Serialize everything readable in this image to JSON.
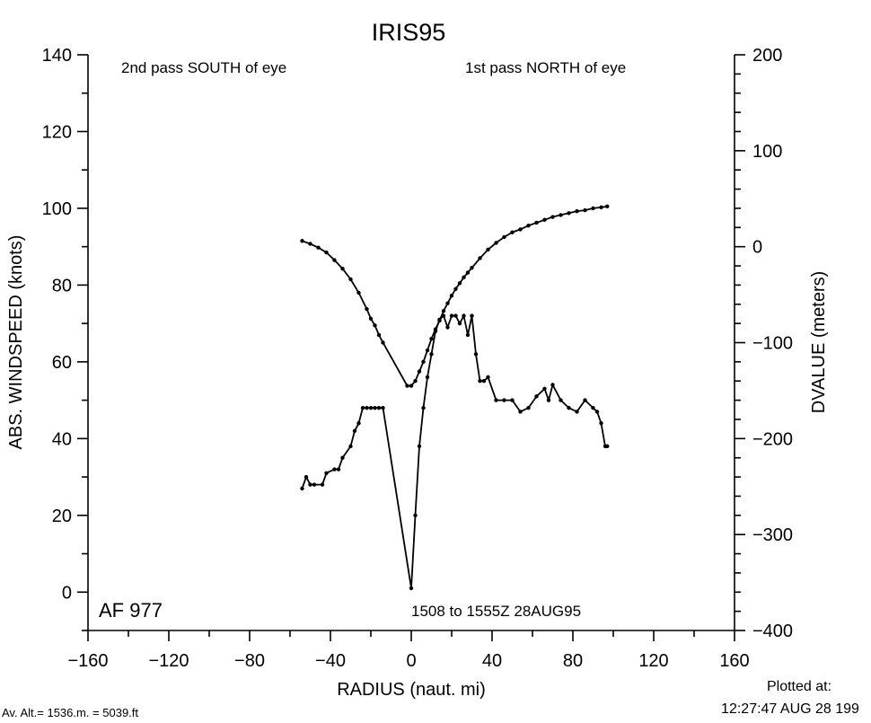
{
  "chart_data": {
    "type": "line",
    "title": "IRIS95",
    "xlabel": "RADIUS (naut. mi)",
    "ylabel": "ABS. WINDSPEED (knots)",
    "ylabel_right": "DVALUE (meters)",
    "xlim": [
      -160,
      160
    ],
    "ylim": [
      -10,
      140
    ],
    "ylim_right": [
      -400,
      200
    ],
    "x_ticks": [
      -160,
      -120,
      -80,
      -40,
      0,
      40,
      80,
      120,
      160
    ],
    "y_ticks": [
      0,
      20,
      40,
      60,
      80,
      100,
      120,
      140
    ],
    "y_ticks_right": [
      200,
      100,
      0,
      -100,
      -200,
      -300,
      -400
    ],
    "x_tick_labels": [
      "−160",
      "−120",
      "−80",
      "−40",
      "0",
      "40",
      "80",
      "120",
      "160"
    ],
    "y_tick_labels": [
      "0",
      "20",
      "40",
      "60",
      "80",
      "100",
      "120",
      "140"
    ],
    "y_tick_labels_right": [
      "200",
      "100",
      "0",
      "−100",
      "−200",
      "−300",
      "−400"
    ],
    "grid": false,
    "annotations": {
      "top_left": "2nd pass SOUTH of eye",
      "top_right": "1st pass NORTH of eye",
      "bottom_left": "AF 977",
      "bottom_center": "1508 to 1555Z 28AUG95"
    },
    "series": [
      {
        "axis": "right",
        "x": [
          -54,
          -50,
          -46,
          -42,
          -38,
          -34,
          -30,
          -26,
          -22,
          -20,
          -18,
          -16,
          -14,
          -2,
          0,
          2,
          4,
          6,
          8,
          10,
          12,
          14,
          16,
          18,
          20,
          22,
          24,
          26,
          28,
          30,
          34,
          38,
          42,
          46,
          50,
          54,
          58,
          62,
          66,
          70,
          74,
          78,
          82,
          86,
          90,
          94,
          97
        ],
        "y": [
          6,
          3,
          -1,
          -6,
          -14,
          -23,
          -34,
          -48,
          -65,
          -75,
          -82,
          -92,
          -100,
          -145,
          -145,
          -140,
          -130,
          -120,
          -108,
          -96,
          -86,
          -77,
          -67,
          -59,
          -51,
          -44,
          -38,
          -32,
          -27,
          -22,
          -12,
          -3,
          4,
          10,
          15,
          18,
          22,
          25,
          28,
          31,
          33,
          35,
          37,
          38,
          40,
          41,
          42
        ]
      },
      {
        "axis": "left",
        "x": [
          -54,
          -52,
          -50,
          -48,
          -44,
          -42,
          -38,
          -36,
          -34,
          -30,
          -28,
          -26,
          -24,
          -22,
          -20,
          -18,
          -16,
          -14,
          0,
          2,
          4,
          6,
          8,
          10,
          12,
          14,
          16,
          18,
          20,
          22,
          24,
          26,
          28,
          30,
          32,
          34,
          36,
          38,
          42,
          46,
          50,
          54,
          58,
          62,
          66,
          68,
          70,
          74,
          78,
          82,
          86,
          90,
          92,
          94,
          96,
          97
        ],
        "y": [
          27,
          30,
          28,
          28,
          28,
          31,
          32,
          32,
          35,
          38,
          42,
          44,
          48,
          48,
          48,
          48,
          48,
          48,
          1,
          20,
          38,
          48,
          56,
          62,
          68,
          71,
          72,
          69,
          72,
          72,
          70,
          72,
          67,
          72,
          62,
          55,
          55,
          56,
          50,
          50,
          50,
          47,
          48,
          51,
          53,
          50,
          54,
          50,
          48,
          47,
          50,
          48,
          47,
          44,
          38,
          38
        ]
      }
    ]
  },
  "footer": {
    "left": "Av. Alt.= 1536.m. =  5039.ft",
    "right_label": "Plotted at:",
    "right_time": "12:27:47 AUG 28 199"
  }
}
